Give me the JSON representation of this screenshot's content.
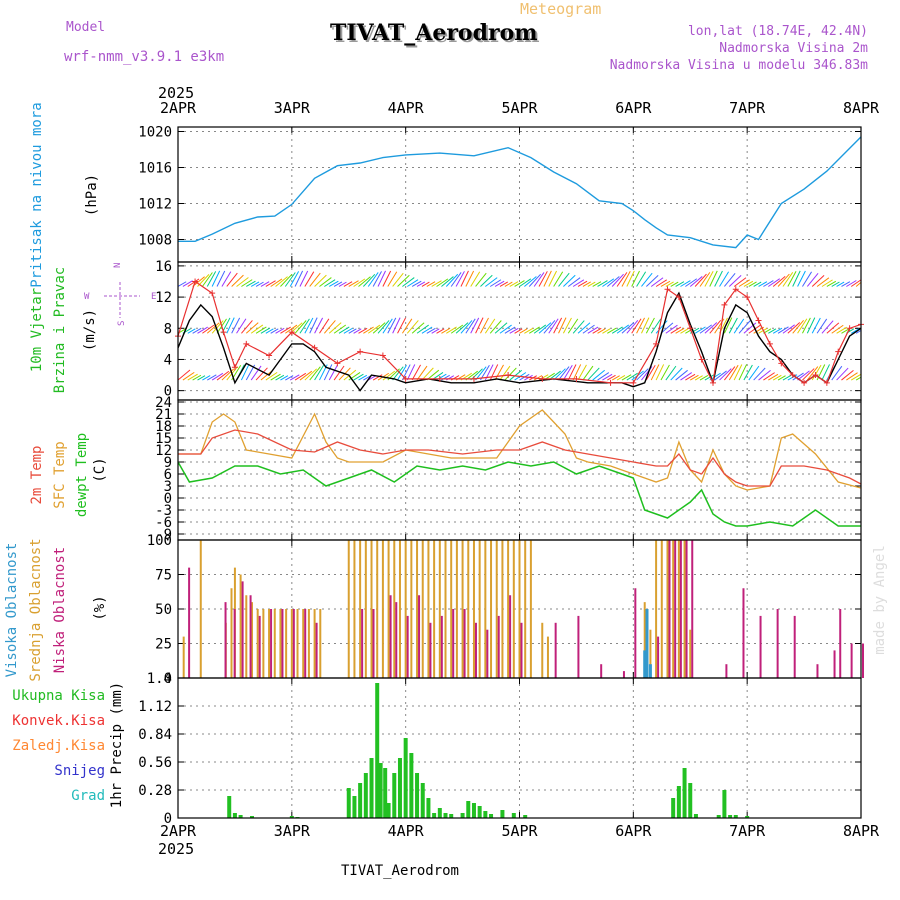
{
  "header": {
    "model_label": "Model",
    "model_name": "wrf-nmm_v3.9.1  e3km",
    "chart_kind": "Meteogram",
    "title": "TIVAT_Aerodrom",
    "coords": "lon,lat (18.74E, 42.4N)",
    "elevation": "Nadmorska Visina 2m",
    "model_elevation": "Nadmorska Visina u modelu 346.83m",
    "year_top": "2025",
    "year_bottom": "2025",
    "footer_title": "TIVAT_Aerodrom",
    "watermark": "made by Angel"
  },
  "colors": {
    "pressure": "#1e9bde",
    "wind_speed": "#000000",
    "gust": "#e83030",
    "t2m": "#e84c3c",
    "sfc": "#e0a030",
    "dewpt": "#1fbf1f",
    "high_cloud": "#3399cc",
    "mid_cloud": "#d9a030",
    "low_cloud": "#c0207a",
    "precip": "#22c022",
    "label_green": "#22bb22",
    "label_red": "#ee3333",
    "label_orange": "#ff8833",
    "label_blue": "#3333cc",
    "label_teal": "#22bbbb",
    "purple": "#aa55cc",
    "gold": "#f0c070"
  },
  "chart_data": [
    {
      "id": "pressure",
      "type": "line",
      "title": "Pritisak na nivou mora",
      "ylabel": "Pritisak na nivou mora",
      "yunit": "(hPa)",
      "x_labels": [
        "2APR",
        "3APR",
        "4APR",
        "5APR",
        "6APR",
        "7APR",
        "8APR"
      ],
      "ylim": [
        1005.5,
        1020.5
      ],
      "yticks": [
        1008,
        1012,
        1016,
        1020
      ],
      "series": [
        {
          "name": "MSLP",
          "x": [
            0,
            0.15,
            0.3,
            0.5,
            0.7,
            0.85,
            1.0,
            1.2,
            1.4,
            1.6,
            1.8,
            2.0,
            2.3,
            2.6,
            2.9,
            3.1,
            3.3,
            3.5,
            3.7,
            3.9,
            4.0,
            4.1,
            4.2,
            4.3,
            4.5,
            4.7,
            4.9,
            5.0,
            5.1,
            5.3,
            5.5,
            5.7,
            6.0
          ],
          "values": [
            1007.8,
            1007.8,
            1008.6,
            1009.8,
            1010.5,
            1010.6,
            1011.9,
            1014.8,
            1016.2,
            1016.5,
            1017.1,
            1017.4,
            1017.6,
            1017.3,
            1018.2,
            1017.1,
            1015.5,
            1014.2,
            1012.3,
            1012.0,
            1011.2,
            1010.2,
            1009.3,
            1008.5,
            1008.2,
            1007.4,
            1007.1,
            1008.5,
            1008.0,
            1012.0,
            1013.6,
            1015.6,
            1019.4
          ]
        }
      ]
    },
    {
      "id": "wind",
      "type": "line",
      "title": "10m Vjetar Brzina i Pravac",
      "ylabel": "10m Vjetar",
      "ylabel2": "Brzina i Pravac",
      "yunit": "(m/s)",
      "compass": [
        "N",
        "W",
        "E",
        "S"
      ],
      "ylim": [
        -1.2,
        16.5
      ],
      "yticks": [
        0,
        4,
        8,
        12,
        16
      ],
      "direction_rows": [
        2,
        8,
        14
      ],
      "series": [
        {
          "name": "speed",
          "x": [
            0,
            0.1,
            0.2,
            0.3,
            0.4,
            0.5,
            0.6,
            0.8,
            1.0,
            1.1,
            1.2,
            1.3,
            1.5,
            1.6,
            1.7,
            1.9,
            2.0,
            2.2,
            2.4,
            2.6,
            2.8,
            3.0,
            3.3,
            3.6,
            3.9,
            4.0,
            4.1,
            4.2,
            4.3,
            4.4,
            4.5,
            4.6,
            4.7,
            4.8,
            4.9,
            5.0,
            5.1,
            5.2,
            5.3,
            5.4,
            5.5,
            5.6,
            5.7,
            5.8,
            5.9,
            6.0
          ],
          "values": [
            5.5,
            9,
            11,
            9.5,
            5.5,
            1,
            3.5,
            2,
            6,
            6,
            5,
            3,
            2,
            0,
            2,
            1.5,
            1,
            1.5,
            1,
            1,
            1.5,
            1,
            1.5,
            1,
            1,
            0.5,
            1,
            5,
            10,
            12.5,
            8.5,
            5,
            1,
            8,
            11,
            10,
            7,
            5,
            4,
            2,
            1,
            2,
            1,
            4,
            7,
            8
          ]
        },
        {
          "name": "gust",
          "x": [
            0,
            0.15,
            0.3,
            0.4,
            0.5,
            0.6,
            0.8,
            1.0,
            1.2,
            1.4,
            1.6,
            1.8,
            2.0,
            2.3,
            2.6,
            2.9,
            3.2,
            3.5,
            3.8,
            4.0,
            4.2,
            4.3,
            4.4,
            4.5,
            4.6,
            4.7,
            4.8,
            4.9,
            5.0,
            5.1,
            5.2,
            5.3,
            5.4,
            5.5,
            5.6,
            5.7,
            5.8,
            5.9,
            6.0
          ],
          "values": [
            7,
            14,
            12.5,
            7.5,
            3,
            6,
            4.5,
            7.5,
            5.5,
            3.5,
            5,
            4.5,
            1.5,
            1.5,
            1.5,
            2,
            1.5,
            1.5,
            1,
            1,
            6,
            13,
            12,
            8,
            4,
            1,
            11,
            13,
            12,
            9,
            6,
            3.5,
            2,
            1,
            2,
            1,
            5,
            8,
            8.5
          ]
        }
      ]
    },
    {
      "id": "temperature",
      "type": "line",
      "title": "Temperatura",
      "ylabel_t2m": "2m Temp",
      "ylabel_sfc": "SFC Temp",
      "ylabel_dew": "dewpt Temp",
      "yunit": "(C)",
      "ylim": [
        -10.5,
        24.5
      ],
      "yticks": [
        -9,
        -6,
        -3,
        0,
        3,
        6,
        9,
        12,
        15,
        18,
        21,
        24
      ],
      "series": [
        {
          "name": "SFC",
          "x": [
            0,
            0.2,
            0.3,
            0.4,
            0.5,
            0.6,
            0.8,
            1.0,
            1.2,
            1.3,
            1.4,
            1.5,
            1.6,
            1.8,
            2.0,
            2.2,
            2.4,
            2.6,
            2.8,
            3.0,
            3.2,
            3.4,
            3.5,
            3.6,
            3.8,
            4.0,
            4.2,
            4.3,
            4.4,
            4.5,
            4.6,
            4.7,
            4.8,
            4.9,
            5.0,
            5.2,
            5.3,
            5.4,
            5.6,
            5.8,
            6.0
          ],
          "values": [
            11,
            11,
            19,
            21,
            19,
            12,
            11,
            10,
            21,
            14,
            10,
            9,
            9,
            9,
            12,
            11,
            10,
            10,
            10,
            18,
            22,
            16,
            10,
            9,
            8,
            6,
            4,
            5,
            14,
            7,
            4,
            12,
            6,
            3,
            2,
            3,
            15,
            16,
            11,
            4,
            2.5
          ]
        },
        {
          "name": "T2M",
          "x": [
            0,
            0.2,
            0.3,
            0.5,
            0.7,
            1.0,
            1.2,
            1.4,
            1.6,
            1.8,
            2.0,
            2.2,
            2.5,
            2.8,
            3.0,
            3.2,
            3.4,
            3.6,
            3.8,
            4.0,
            4.2,
            4.3,
            4.4,
            4.5,
            4.6,
            4.7,
            4.8,
            4.9,
            5.0,
            5.2,
            5.3,
            5.5,
            5.7,
            5.9,
            6.0
          ],
          "values": [
            11,
            11,
            15,
            17,
            16,
            12,
            11.5,
            14,
            12,
            11,
            12,
            12,
            11,
            12,
            12,
            14,
            12,
            11,
            10,
            9,
            8,
            8,
            11,
            7,
            6,
            10,
            6,
            4,
            3,
            3,
            8,
            8,
            7,
            5,
            3.5
          ]
        },
        {
          "name": "DEWPT",
          "x": [
            0,
            0.1,
            0.3,
            0.5,
            0.7,
            0.9,
            1.1,
            1.3,
            1.5,
            1.7,
            1.9,
            2.1,
            2.3,
            2.5,
            2.7,
            2.9,
            3.1,
            3.3,
            3.5,
            3.7,
            3.9,
            4.0,
            4.1,
            4.3,
            4.4,
            4.5,
            4.6,
            4.7,
            4.8,
            4.9,
            5.0,
            5.2,
            5.4,
            5.5,
            5.6,
            5.8,
            6.0
          ],
          "values": [
            9,
            4,
            5,
            8,
            8,
            6,
            7,
            3,
            5,
            7,
            4,
            8,
            7,
            8,
            7,
            9,
            8,
            9,
            6,
            8,
            6,
            5,
            -3,
            -5,
            -3,
            -1,
            2,
            -4,
            -6,
            -7,
            -7,
            -6,
            -7,
            -5,
            -3,
            -7,
            -7
          ]
        }
      ]
    },
    {
      "id": "clouds",
      "type": "bar",
      "title": "Oblacnost",
      "ylabel_high": "Visoka Oblacnost",
      "ylabel_mid": "Srednja Oblacnost",
      "ylabel_low": "Niska Oblacnost",
      "yunit": "(%)",
      "ylim": [
        0,
        100
      ],
      "yticks": [
        0,
        25,
        50,
        75,
        100
      ],
      "series": [
        {
          "name": "mid",
          "x": [
            0.05,
            0.2,
            0.42,
            0.47,
            0.5,
            0.55,
            0.6,
            0.65,
            0.7,
            0.75,
            0.8,
            0.85,
            0.9,
            0.95,
            1.0,
            1.05,
            1.1,
            1.15,
            1.2,
            1.25,
            1.5,
            1.55,
            1.6,
            1.65,
            1.7,
            1.75,
            1.8,
            1.85,
            1.9,
            1.95,
            2.0,
            2.05,
            2.1,
            2.15,
            2.2,
            2.25,
            2.3,
            2.35,
            2.4,
            2.45,
            2.5,
            2.55,
            2.6,
            2.65,
            2.7,
            2.75,
            2.8,
            2.85,
            2.9,
            2.95,
            3.0,
            3.05,
            3.1,
            3.2,
            3.25,
            4.1,
            4.15,
            4.2,
            4.25,
            4.3,
            4.35,
            4.4,
            4.45,
            4.5
          ],
          "values": [
            30,
            100,
            40,
            65,
            80,
            75,
            60,
            55,
            50,
            50,
            50,
            50,
            50,
            50,
            50,
            50,
            50,
            50,
            50,
            50,
            100,
            100,
            100,
            100,
            100,
            100,
            100,
            100,
            100,
            100,
            100,
            100,
            100,
            100,
            100,
            100,
            100,
            100,
            100,
            100,
            100,
            100,
            100,
            100,
            100,
            100,
            100,
            100,
            100,
            100,
            100,
            100,
            100,
            40,
            30,
            55,
            35,
            100,
            100,
            100,
            100,
            100,
            100,
            35
          ]
        },
        {
          "name": "low",
          "x": [
            0.08,
            0.4,
            0.48,
            0.55,
            0.62,
            0.7,
            0.8,
            0.9,
            1.0,
            1.1,
            1.2,
            1.6,
            1.7,
            1.85,
            1.9,
            2.0,
            2.1,
            2.2,
            2.3,
            2.4,
            2.5,
            2.6,
            2.7,
            2.8,
            2.9,
            3.0,
            3.3,
            3.5,
            3.7,
            3.9,
            4.0,
            4.2,
            4.3,
            4.35,
            4.4,
            4.45,
            4.5,
            4.8,
            4.95,
            5.1,
            5.25,
            5.4,
            5.6,
            5.75,
            5.8,
            5.9,
            6.0
          ],
          "values": [
            80,
            55,
            50,
            70,
            60,
            45,
            50,
            50,
            50,
            50,
            40,
            50,
            50,
            60,
            55,
            45,
            60,
            40,
            45,
            50,
            50,
            40,
            35,
            45,
            60,
            40,
            40,
            45,
            10,
            5,
            65,
            30,
            100,
            100,
            100,
            100,
            100,
            10,
            65,
            45,
            50,
            45,
            10,
            20,
            50,
            25,
            25
          ]
        },
        {
          "name": "high",
          "x": [
            4.1,
            4.12,
            4.15
          ],
          "values": [
            20,
            50,
            10
          ]
        }
      ]
    },
    {
      "id": "precip",
      "type": "bar",
      "title": "1hr Precip",
      "ylabel": "1hr Precip",
      "yunit": "(mm)",
      "ylim": [
        0,
        1.4
      ],
      "yticks": [
        0,
        0.28,
        0.56,
        0.84,
        1.12,
        1.4
      ],
      "legend": [
        "Ukupna  Kisa",
        "Konvek.Kisa",
        "Zaledj.Kisa",
        "Snijeg",
        "Grad"
      ],
      "series": [
        {
          "name": "total",
          "x": [
            0.45,
            0.5,
            0.55,
            0.65,
            1.0,
            1.05,
            1.5,
            1.55,
            1.6,
            1.65,
            1.7,
            1.75,
            1.78,
            1.82,
            1.85,
            1.9,
            1.95,
            2.0,
            2.05,
            2.1,
            2.15,
            2.2,
            2.25,
            2.3,
            2.35,
            2.4,
            2.5,
            2.55,
            2.6,
            2.65,
            2.7,
            2.75,
            2.85,
            2.95,
            3.05,
            4.35,
            4.4,
            4.45,
            4.5,
            4.55,
            4.75,
            4.8,
            4.85,
            4.9,
            5.0
          ],
          "values": [
            0.22,
            0.05,
            0.03,
            0.02,
            0.02,
            0.01,
            0.3,
            0.22,
            0.35,
            0.45,
            0.6,
            1.35,
            0.55,
            0.5,
            0.15,
            0.45,
            0.6,
            0.8,
            0.65,
            0.45,
            0.35,
            0.2,
            0.05,
            0.1,
            0.05,
            0.04,
            0.05,
            0.17,
            0.15,
            0.12,
            0.07,
            0.04,
            0.08,
            0.05,
            0.03,
            0.2,
            0.32,
            0.5,
            0.35,
            0.04,
            0.03,
            0.28,
            0.03,
            0.03,
            0.02
          ]
        }
      ]
    }
  ]
}
